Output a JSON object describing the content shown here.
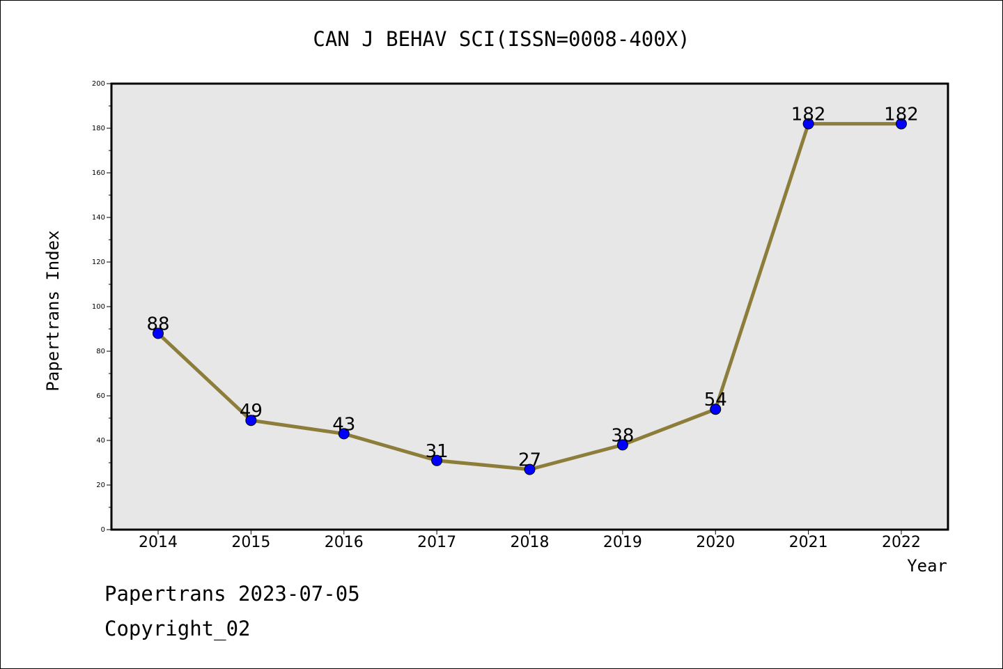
{
  "chart_data": {
    "type": "line",
    "title": "CAN J BEHAV SCI(ISSN=0008-400X)",
    "xlabel": "Year",
    "ylabel": "Papertrans Index",
    "categories": [
      "2014",
      "2015",
      "2016",
      "2017",
      "2018",
      "2019",
      "2020",
      "2021",
      "2022"
    ],
    "series": [
      {
        "values": [
          88,
          49,
          43,
          31,
          27,
          38,
          54,
          182,
          182
        ]
      }
    ],
    "ylim": [
      0,
      200
    ],
    "yticks": [
      0,
      20,
      40,
      60,
      80,
      100,
      120,
      140,
      160,
      180,
      200
    ],
    "grid": false,
    "data_labels": true,
    "colors": {
      "line": "#8c7d3a",
      "marker": "#0000ff",
      "plot_background": "#e7e7e7"
    }
  },
  "footer": {
    "date_text": "Papertrans 2023-07-05",
    "copyright_text": "Copyright_02"
  }
}
